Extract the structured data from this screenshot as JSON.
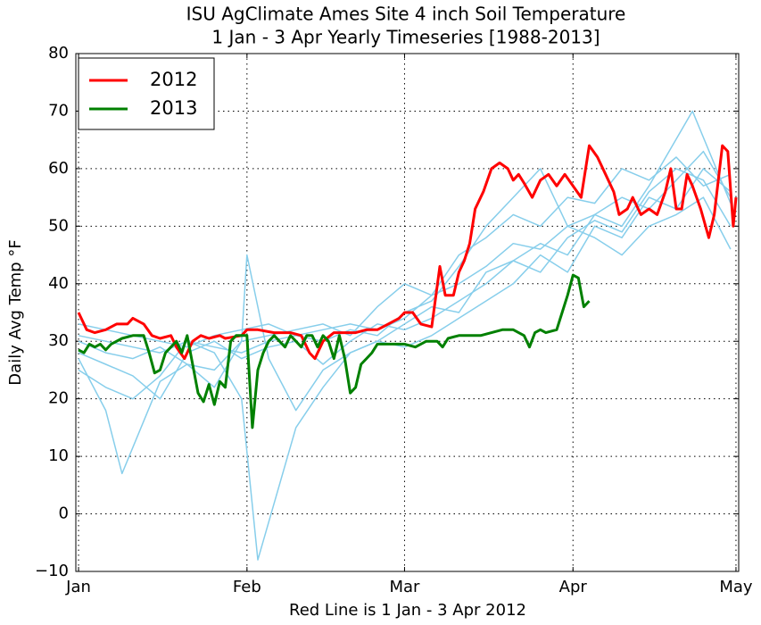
{
  "chart_data": {
    "type": "line",
    "title": "ISU AgClimate Ames Site 4 inch Soil Temperature",
    "subtitle": "1 Jan - 3 Apr Yearly Timeseries [1988-2013]",
    "y_label": "Daily Avg Temp °F",
    "x_label": "Red Line is 1 Jan - 3 Apr 2012",
    "xlim": [
      -0.5,
      121.5
    ],
    "xticks": [
      {
        "value": 0,
        "label": "Jan"
      },
      {
        "value": 31,
        "label": "Feb"
      },
      {
        "value": 60,
        "label": "Mar"
      },
      {
        "value": 91,
        "label": "Apr"
      },
      {
        "value": 121,
        "label": "May"
      }
    ],
    "ylim": [
      -10,
      80
    ],
    "yticks": [
      {
        "value": -10,
        "label": "−10"
      },
      0,
      10,
      20,
      30,
      40,
      50,
      60,
      70,
      80
    ],
    "grid": true,
    "legend": "upper left",
    "series": [
      {
        "color": "#87ceeb",
        "x": [
          0,
          5,
          10,
          15,
          20,
          25,
          30,
          35,
          40,
          45,
          50,
          55,
          60,
          65,
          70,
          75,
          80,
          85,
          90,
          95,
          100,
          105,
          110,
          115,
          120
        ],
        "values": [
          30,
          28,
          27,
          29,
          26,
          25,
          30,
          31,
          32,
          33,
          31,
          36,
          40,
          38,
          45,
          48,
          52,
          50,
          55,
          54,
          60,
          58,
          62,
          57,
          59
        ]
      },
      {
        "color": "#87ceeb",
        "x": [
          0,
          5,
          10,
          15,
          20,
          25,
          30,
          33,
          40,
          45,
          50,
          55,
          60,
          65,
          70,
          75,
          80,
          85,
          90,
          95,
          100,
          105,
          110,
          115,
          120
        ],
        "values": [
          25,
          22,
          20,
          24,
          30,
          28,
          20,
          -8,
          15,
          22,
          28,
          30,
          29,
          31,
          34,
          37,
          40,
          45,
          42,
          50,
          48,
          55,
          53,
          60,
          56
        ]
      },
      {
        "color": "#87ceeb",
        "x": [
          0,
          5,
          10,
          15,
          20,
          25,
          30,
          35,
          40,
          45,
          50,
          55,
          60,
          65,
          70,
          75,
          80,
          85,
          90,
          95,
          100,
          105,
          110,
          115,
          120
        ],
        "values": [
          33,
          32,
          31,
          30,
          29,
          31,
          32,
          33,
          31,
          32,
          33,
          32,
          34,
          38,
          40,
          43,
          47,
          46,
          50,
          52,
          55,
          53,
          58,
          63,
          55
        ]
      },
      {
        "color": "#87ceeb",
        "x": [
          0,
          5,
          8,
          15,
          20,
          25,
          30,
          31,
          35,
          40,
          45,
          50,
          55,
          60,
          65,
          70,
          75,
          80,
          85,
          90,
          95,
          100,
          105,
          113,
          120
        ],
        "values": [
          27,
          18,
          7,
          23,
          26,
          22,
          30,
          45,
          27,
          18,
          25,
          28,
          30,
          33,
          36,
          35,
          42,
          44,
          47,
          45,
          52,
          50,
          57,
          70,
          54
        ]
      },
      {
        "color": "#87ceeb",
        "x": [
          0,
          5,
          10,
          15,
          20,
          25,
          30,
          35,
          40,
          45,
          50,
          55,
          60,
          65,
          70,
          75,
          80,
          85,
          90,
          95,
          100,
          105,
          110,
          115,
          120
        ],
        "values": [
          31,
          30,
          29,
          28,
          30,
          29,
          28,
          30,
          31,
          30,
          32,
          31,
          35,
          37,
          43,
          50,
          55,
          60,
          50,
          48,
          45,
          50,
          52,
          55,
          46
        ]
      },
      {
        "color": "#87ceeb",
        "x": [
          0,
          5,
          10,
          15,
          20,
          25,
          30,
          35,
          40,
          45,
          50,
          55,
          60,
          65,
          70,
          75,
          80,
          85,
          90,
          95,
          100,
          105,
          110,
          115,
          120
        ],
        "values": [
          28,
          26,
          24,
          20,
          28,
          30,
          27,
          29,
          30,
          26,
          30,
          33,
          32,
          34,
          37,
          40,
          44,
          42,
          48,
          51,
          49,
          56,
          60,
          58,
          50
        ]
      },
      {
        "name": "2012",
        "color": "#ff0000",
        "x": [
          0,
          1.5,
          3,
          5,
          7,
          9,
          10,
          12,
          13.5,
          15,
          17,
          18,
          19.5,
          21,
          22.5,
          24,
          26,
          27,
          30,
          31,
          33,
          36,
          39,
          41,
          42.5,
          43.5,
          45,
          47,
          49,
          51,
          53,
          55,
          57,
          59,
          60,
          61.5,
          63,
          65,
          66.5,
          67.5,
          69,
          70,
          71,
          72,
          73,
          74.5,
          76,
          77.5,
          79,
          80,
          81,
          82,
          83.5,
          85,
          86.5,
          88,
          89.5,
          91,
          92.5,
          94,
          95.5,
          97,
          98.5,
          99.5,
          101,
          102,
          103.5,
          105,
          106.5,
          108,
          109,
          110,
          111,
          112,
          113,
          114.5,
          116,
          117,
          118.5,
          119.5,
          120.5,
          121
        ],
        "values": [
          35,
          32,
          31.5,
          32,
          33,
          33,
          34,
          33,
          31,
          30.5,
          31,
          29,
          27,
          30,
          31,
          30.5,
          31,
          30.5,
          31,
          32,
          32,
          31.5,
          31.5,
          31,
          28,
          27,
          30,
          31.5,
          31.5,
          31.5,
          32,
          32,
          33,
          34,
          35,
          35,
          33,
          32.5,
          43,
          38,
          38,
          42,
          44,
          47,
          53,
          56,
          60,
          61,
          60,
          58,
          59,
          57.5,
          55,
          58,
          59,
          57,
          59,
          57,
          55,
          64,
          62,
          59,
          56,
          52,
          53,
          55,
          52,
          53,
          52,
          56,
          60,
          53,
          53,
          59,
          57,
          53,
          48,
          52,
          64,
          63,
          50,
          55
        ]
      },
      {
        "name": "2013",
        "color": "#008000",
        "x": [
          0,
          1,
          2,
          3,
          4,
          5,
          6,
          8,
          10,
          12,
          13,
          14,
          15,
          16,
          17,
          18,
          19,
          20,
          21,
          22,
          23,
          24,
          25,
          26,
          27,
          28,
          29,
          30,
          31,
          32,
          33,
          34,
          35,
          36,
          38,
          39,
          40,
          41,
          42,
          43,
          44,
          45,
          46,
          47,
          48,
          49,
          50,
          51,
          52,
          53,
          54,
          55,
          57,
          60,
          62,
          64,
          66,
          67,
          68,
          70,
          72,
          74,
          76,
          78,
          80,
          82,
          83,
          84,
          85,
          86,
          88,
          89,
          90,
          91,
          92,
          93,
          94
        ],
        "values": [
          28.5,
          28,
          29.5,
          29,
          29.5,
          28.5,
          29.5,
          30.5,
          31,
          31,
          28,
          24.5,
          25,
          28,
          29,
          30,
          28,
          31,
          26,
          21,
          19.5,
          22.5,
          19,
          23,
          22,
          30,
          31,
          31,
          31,
          15,
          25,
          28,
          30,
          31,
          29,
          31,
          30,
          29,
          31,
          31,
          29,
          31,
          30,
          27,
          31,
          27,
          21,
          22,
          26,
          27,
          28,
          29.5,
          29.5,
          29.5,
          29,
          30,
          30,
          29,
          30.5,
          31,
          31,
          31,
          31.5,
          32,
          32,
          31,
          29,
          31.5,
          32,
          31.5,
          32,
          35,
          38,
          41.5,
          41,
          36,
          37
        ]
      }
    ]
  }
}
